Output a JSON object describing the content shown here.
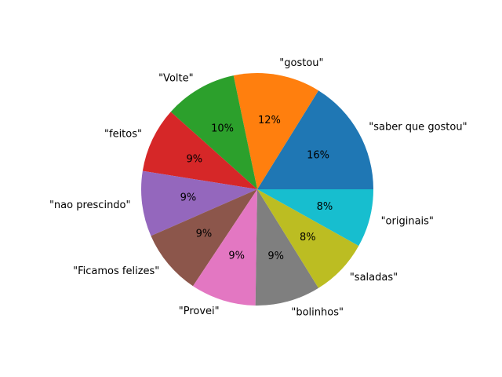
{
  "chart_data": {
    "type": "pie",
    "title": "",
    "start_angle_deg": 0,
    "direction": "counterclockwise",
    "slices": [
      {
        "label": "\"saber que gostou\"",
        "value": 16,
        "pct_label": "16%",
        "color": "#1f77b4"
      },
      {
        "label": "\"gostou\"",
        "value": 12,
        "pct_label": "12%",
        "color": "#ff7f0e"
      },
      {
        "label": "\"Volte\"",
        "value": 10,
        "pct_label": "10%",
        "color": "#2ca02c"
      },
      {
        "label": "\"feitos\"",
        "value": 9,
        "pct_label": "9%",
        "color": "#d62728"
      },
      {
        "label": "\"nao prescindo\"",
        "value": 9,
        "pct_label": "9%",
        "color": "#9467bd"
      },
      {
        "label": "\"Ficamos felizes\"",
        "value": 9,
        "pct_label": "9%",
        "color": "#8c564b"
      },
      {
        "label": "\"Provei\"",
        "value": 9,
        "pct_label": "9%",
        "color": "#e377c2"
      },
      {
        "label": "\"bolinhos\"",
        "value": 9,
        "pct_label": "9%",
        "color": "#7f7f7f"
      },
      {
        "label": "\"saladas\"",
        "value": 8,
        "pct_label": "8%",
        "color": "#bcbd22"
      },
      {
        "label": "\"originais\"",
        "value": 8,
        "pct_label": "8%",
        "color": "#17becf"
      }
    ]
  }
}
